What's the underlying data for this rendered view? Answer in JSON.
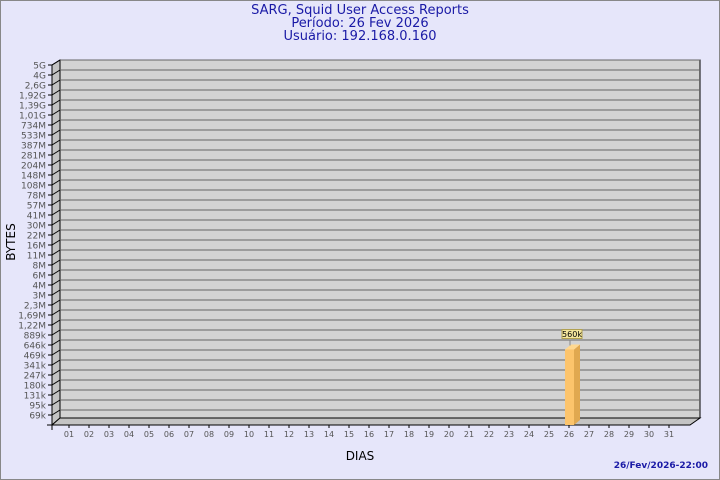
{
  "header": {
    "title": "SARG, Squid User Access Reports",
    "period": "Período: 26 Fev 2026",
    "user": "Usuário: 192.168.0.160"
  },
  "footer": {
    "timestamp": "26/Fev/2026-22:00"
  },
  "colors": {
    "background": "#e6e6fa",
    "plot": "#d3d3d3",
    "bar": "#fcc46c",
    "bar_side": "#e0a850",
    "title": "#1a1aa6"
  },
  "chart_data": {
    "type": "bar",
    "xlabel": "DIAS",
    "ylabel": "BYTES",
    "y_scale": "log",
    "y_ticks": [
      "5G",
      "4G",
      "2,6G",
      "1,92G",
      "1,39G",
      "1,01G",
      "734M",
      "533M",
      "387M",
      "281M",
      "204M",
      "148M",
      "108M",
      "78M",
      "57M",
      "41M",
      "30M",
      "22M",
      "16M",
      "11M",
      "8M",
      "6M",
      "4M",
      "3M",
      "2,3M",
      "1,69M",
      "1,22M",
      "889k",
      "646k",
      "469k",
      "341k",
      "247k",
      "180k",
      "131k",
      "95k",
      "69k"
    ],
    "categories": [
      "01",
      "02",
      "03",
      "04",
      "05",
      "06",
      "07",
      "08",
      "09",
      "10",
      "11",
      "12",
      "13",
      "14",
      "15",
      "16",
      "17",
      "18",
      "19",
      "20",
      "21",
      "22",
      "23",
      "24",
      "25",
      "26",
      "27",
      "28",
      "29",
      "30",
      "31"
    ],
    "values": {
      "26": "560k"
    },
    "data_labels": [
      {
        "category": "26",
        "label": "560k"
      }
    ],
    "grid": true,
    "legend": "none"
  }
}
